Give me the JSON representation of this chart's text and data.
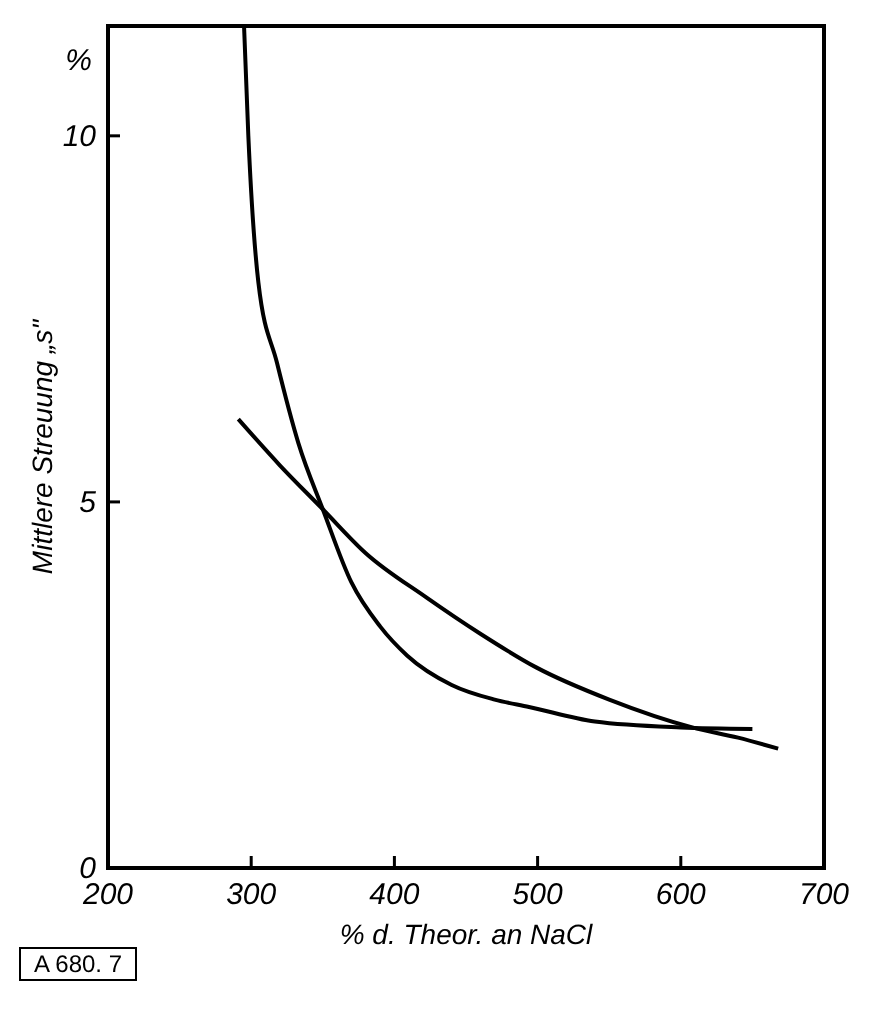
{
  "chart_data": {
    "type": "line",
    "xlabel": "% d. Theor. an NaCl",
    "ylabel": "Mittlere Streuung „s\"",
    "annotations": [
      "%",
      "A 680. 7"
    ],
    "xlim": [
      200,
      700
    ],
    "ylim": [
      0,
      11.5
    ],
    "xticks": [
      200,
      300,
      400,
      500,
      600,
      700
    ],
    "yticks": [
      0,
      5,
      10
    ],
    "grid": false,
    "marker": "none",
    "line_style": "solid",
    "series": [
      {
        "color": "#000000",
        "x": [
          295,
          298,
          305,
          318,
          333,
          350,
          370,
          390,
          409,
          440,
          470,
          494,
          540,
          600,
          650
        ],
        "values": [
          11.5,
          10,
          8,
          6.9,
          5.8,
          4.9,
          3.9,
          3.3,
          2.9,
          2.5,
          2.3,
          2.2,
          2.0,
          1.92,
          1.9
        ]
      },
      {
        "color": "#000000",
        "x": [
          291,
          320,
          350,
          380,
          422,
          460,
          499,
          550,
          608,
          640,
          668
        ],
        "values": [
          6.13,
          5.5,
          4.9,
          4.3,
          3.7,
          3.2,
          2.74,
          2.3,
          1.92,
          1.78,
          1.63
        ]
      }
    ]
  }
}
